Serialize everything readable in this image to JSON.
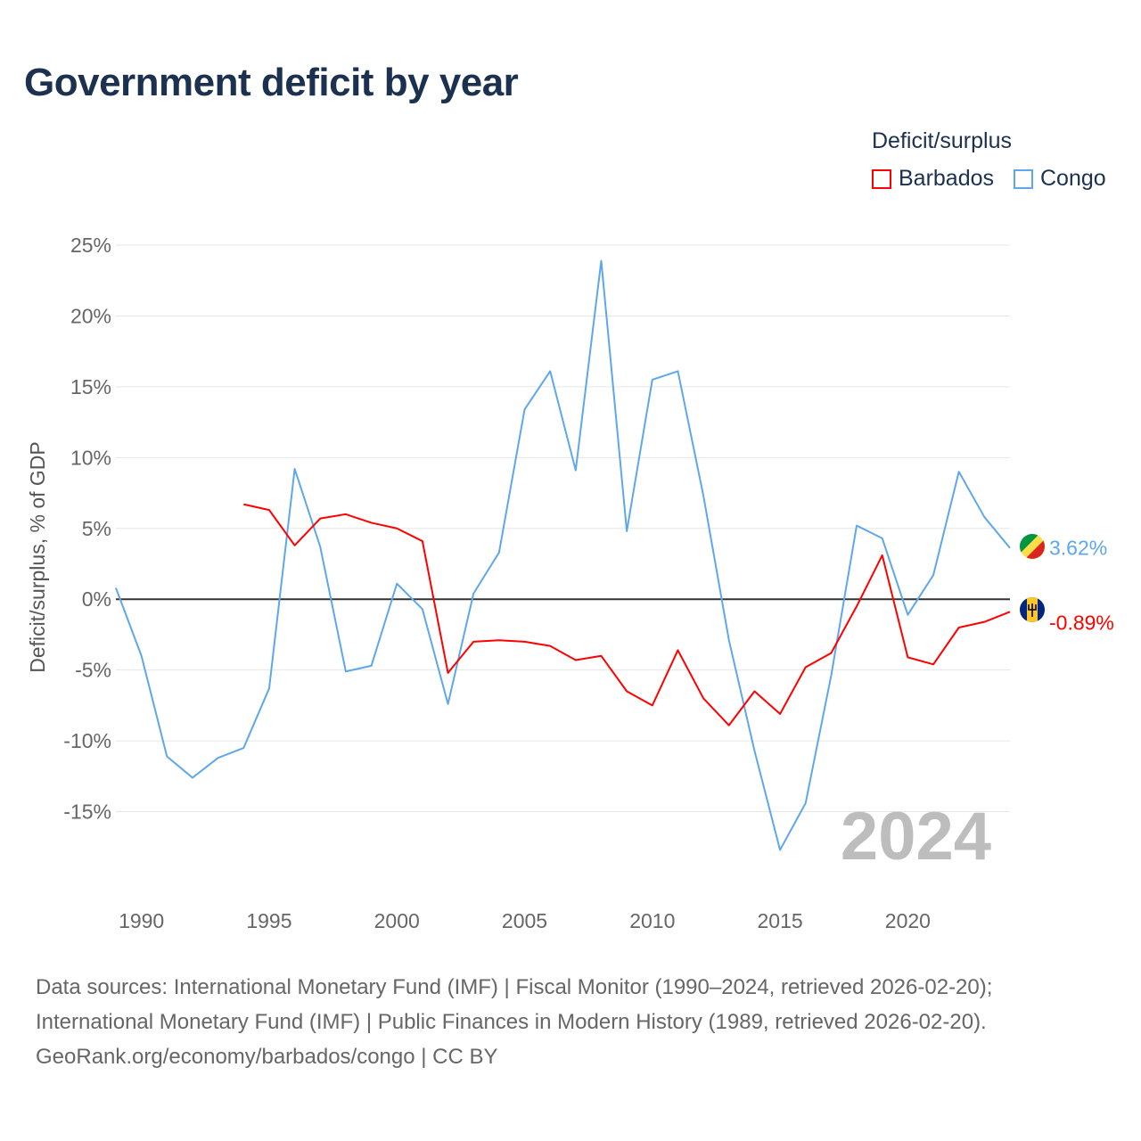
{
  "title": "Government deficit by year",
  "legend": {
    "title": "Deficit/surplus",
    "items": [
      {
        "name": "Barbados",
        "color": "#ff0000"
      },
      {
        "name": "Congo",
        "color": "#5ea7ec"
      }
    ]
  },
  "watermark_year": "2024",
  "footer": {
    "line1": "Data sources: International Monetary Fund (IMF) | Fiscal Monitor (1990–2024, retrieved 2026-02-20);",
    "line2": "International Monetary Fund (IMF) | Public Finances in Modern History (1989, retrieved 2026-02-20).",
    "line3": "GeoRank.org/economy/barbados/congo | CC BY"
  },
  "chart_data": {
    "type": "line",
    "title": "Government deficit by year",
    "xlabel": "",
    "ylabel": "Deficit/surplus, % of GDP",
    "xlim": [
      1989,
      2024
    ],
    "ylim": [
      -20,
      25
    ],
    "xticks": [
      1990,
      1995,
      2000,
      2005,
      2010,
      2015,
      2020
    ],
    "yticks": [
      25,
      20,
      15,
      10,
      5,
      0,
      -5,
      -10,
      -15
    ],
    "ytick_labels": [
      "25%",
      "20%",
      "15%",
      "10%",
      "5%",
      "0%",
      "-5%",
      "-10%",
      "-15%"
    ],
    "grid": true,
    "legend_position": "top-right",
    "series": [
      {
        "name": "Congo",
        "color": "#5ea7ec",
        "end_label": "3.62%",
        "x": [
          1989,
          1990,
          1991,
          1992,
          1993,
          1994,
          1995,
          1996,
          1997,
          1998,
          1999,
          2000,
          2001,
          2002,
          2003,
          2004,
          2005,
          2006,
          2007,
          2008,
          2009,
          2010,
          2011,
          2012,
          2013,
          2014,
          2015,
          2016,
          2017,
          2018,
          2019,
          2020,
          2021,
          2022,
          2023,
          2024
        ],
        "values": [
          0.8,
          -4.0,
          -11.1,
          -12.6,
          -11.2,
          -10.5,
          -6.3,
          9.2,
          3.7,
          -5.1,
          -4.7,
          1.1,
          -0.7,
          -7.4,
          0.4,
          3.3,
          13.4,
          16.1,
          9.1,
          23.9,
          4.8,
          15.5,
          16.1,
          7.3,
          -2.9,
          -10.7,
          -17.7,
          -14.4,
          -5.4,
          5.2,
          4.3,
          -1.1,
          1.7,
          9.0,
          5.8,
          3.62
        ]
      },
      {
        "name": "Barbados",
        "color": "#ff0000",
        "end_label": "-0.89%",
        "x": [
          1994,
          1995,
          1996,
          1997,
          1998,
          1999,
          2000,
          2001,
          2002,
          2003,
          2004,
          2005,
          2006,
          2007,
          2008,
          2009,
          2010,
          2011,
          2012,
          2013,
          2014,
          2015,
          2016,
          2017,
          2018,
          2019,
          2020,
          2021,
          2022,
          2023,
          2024
        ],
        "values": [
          6.7,
          6.3,
          3.8,
          5.7,
          6.0,
          5.4,
          5.0,
          4.1,
          -5.2,
          -3.0,
          -2.9,
          -3.0,
          -3.3,
          -4.3,
          -4.0,
          -6.5,
          -7.5,
          -3.6,
          -7.0,
          -8.9,
          -6.5,
          -8.1,
          -4.8,
          -3.8,
          -0.5,
          3.1,
          -4.1,
          -4.6,
          -2.0,
          -1.6,
          -0.89
        ]
      }
    ]
  }
}
